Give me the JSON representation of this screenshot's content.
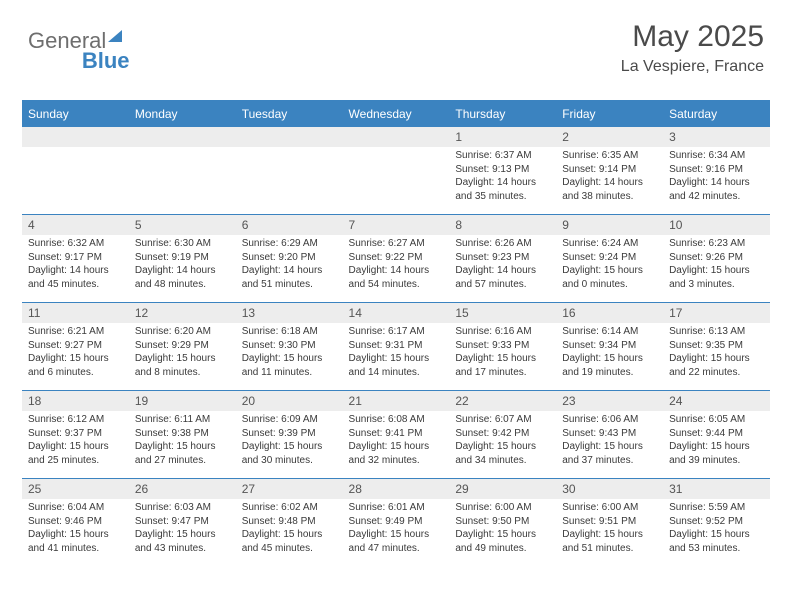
{
  "logo": {
    "part1": "General",
    "part2": "Blue"
  },
  "title": {
    "month": "May 2025",
    "location": "La Vespiere, France"
  },
  "colors": {
    "accent": "#3b83c0",
    "header_text": "#ffffff",
    "daynum_bg": "#ededed",
    "body_text": "#3a3a3a",
    "title_text": "#4a4a4a"
  },
  "day_headers": [
    "Sunday",
    "Monday",
    "Tuesday",
    "Wednesday",
    "Thursday",
    "Friday",
    "Saturday"
  ],
  "weeks": [
    [
      {
        "num": "",
        "sunrise": "",
        "sunset": "",
        "daylight": ""
      },
      {
        "num": "",
        "sunrise": "",
        "sunset": "",
        "daylight": ""
      },
      {
        "num": "",
        "sunrise": "",
        "sunset": "",
        "daylight": ""
      },
      {
        "num": "",
        "sunrise": "",
        "sunset": "",
        "daylight": ""
      },
      {
        "num": "1",
        "sunrise": "Sunrise: 6:37 AM",
        "sunset": "Sunset: 9:13 PM",
        "daylight": "Daylight: 14 hours and 35 minutes."
      },
      {
        "num": "2",
        "sunrise": "Sunrise: 6:35 AM",
        "sunset": "Sunset: 9:14 PM",
        "daylight": "Daylight: 14 hours and 38 minutes."
      },
      {
        "num": "3",
        "sunrise": "Sunrise: 6:34 AM",
        "sunset": "Sunset: 9:16 PM",
        "daylight": "Daylight: 14 hours and 42 minutes."
      }
    ],
    [
      {
        "num": "4",
        "sunrise": "Sunrise: 6:32 AM",
        "sunset": "Sunset: 9:17 PM",
        "daylight": "Daylight: 14 hours and 45 minutes."
      },
      {
        "num": "5",
        "sunrise": "Sunrise: 6:30 AM",
        "sunset": "Sunset: 9:19 PM",
        "daylight": "Daylight: 14 hours and 48 minutes."
      },
      {
        "num": "6",
        "sunrise": "Sunrise: 6:29 AM",
        "sunset": "Sunset: 9:20 PM",
        "daylight": "Daylight: 14 hours and 51 minutes."
      },
      {
        "num": "7",
        "sunrise": "Sunrise: 6:27 AM",
        "sunset": "Sunset: 9:22 PM",
        "daylight": "Daylight: 14 hours and 54 minutes."
      },
      {
        "num": "8",
        "sunrise": "Sunrise: 6:26 AM",
        "sunset": "Sunset: 9:23 PM",
        "daylight": "Daylight: 14 hours and 57 minutes."
      },
      {
        "num": "9",
        "sunrise": "Sunrise: 6:24 AM",
        "sunset": "Sunset: 9:24 PM",
        "daylight": "Daylight: 15 hours and 0 minutes."
      },
      {
        "num": "10",
        "sunrise": "Sunrise: 6:23 AM",
        "sunset": "Sunset: 9:26 PM",
        "daylight": "Daylight: 15 hours and 3 minutes."
      }
    ],
    [
      {
        "num": "11",
        "sunrise": "Sunrise: 6:21 AM",
        "sunset": "Sunset: 9:27 PM",
        "daylight": "Daylight: 15 hours and 6 minutes."
      },
      {
        "num": "12",
        "sunrise": "Sunrise: 6:20 AM",
        "sunset": "Sunset: 9:29 PM",
        "daylight": "Daylight: 15 hours and 8 minutes."
      },
      {
        "num": "13",
        "sunrise": "Sunrise: 6:18 AM",
        "sunset": "Sunset: 9:30 PM",
        "daylight": "Daylight: 15 hours and 11 minutes."
      },
      {
        "num": "14",
        "sunrise": "Sunrise: 6:17 AM",
        "sunset": "Sunset: 9:31 PM",
        "daylight": "Daylight: 15 hours and 14 minutes."
      },
      {
        "num": "15",
        "sunrise": "Sunrise: 6:16 AM",
        "sunset": "Sunset: 9:33 PM",
        "daylight": "Daylight: 15 hours and 17 minutes."
      },
      {
        "num": "16",
        "sunrise": "Sunrise: 6:14 AM",
        "sunset": "Sunset: 9:34 PM",
        "daylight": "Daylight: 15 hours and 19 minutes."
      },
      {
        "num": "17",
        "sunrise": "Sunrise: 6:13 AM",
        "sunset": "Sunset: 9:35 PM",
        "daylight": "Daylight: 15 hours and 22 minutes."
      }
    ],
    [
      {
        "num": "18",
        "sunrise": "Sunrise: 6:12 AM",
        "sunset": "Sunset: 9:37 PM",
        "daylight": "Daylight: 15 hours and 25 minutes."
      },
      {
        "num": "19",
        "sunrise": "Sunrise: 6:11 AM",
        "sunset": "Sunset: 9:38 PM",
        "daylight": "Daylight: 15 hours and 27 minutes."
      },
      {
        "num": "20",
        "sunrise": "Sunrise: 6:09 AM",
        "sunset": "Sunset: 9:39 PM",
        "daylight": "Daylight: 15 hours and 30 minutes."
      },
      {
        "num": "21",
        "sunrise": "Sunrise: 6:08 AM",
        "sunset": "Sunset: 9:41 PM",
        "daylight": "Daylight: 15 hours and 32 minutes."
      },
      {
        "num": "22",
        "sunrise": "Sunrise: 6:07 AM",
        "sunset": "Sunset: 9:42 PM",
        "daylight": "Daylight: 15 hours and 34 minutes."
      },
      {
        "num": "23",
        "sunrise": "Sunrise: 6:06 AM",
        "sunset": "Sunset: 9:43 PM",
        "daylight": "Daylight: 15 hours and 37 minutes."
      },
      {
        "num": "24",
        "sunrise": "Sunrise: 6:05 AM",
        "sunset": "Sunset: 9:44 PM",
        "daylight": "Daylight: 15 hours and 39 minutes."
      }
    ],
    [
      {
        "num": "25",
        "sunrise": "Sunrise: 6:04 AM",
        "sunset": "Sunset: 9:46 PM",
        "daylight": "Daylight: 15 hours and 41 minutes."
      },
      {
        "num": "26",
        "sunrise": "Sunrise: 6:03 AM",
        "sunset": "Sunset: 9:47 PM",
        "daylight": "Daylight: 15 hours and 43 minutes."
      },
      {
        "num": "27",
        "sunrise": "Sunrise: 6:02 AM",
        "sunset": "Sunset: 9:48 PM",
        "daylight": "Daylight: 15 hours and 45 minutes."
      },
      {
        "num": "28",
        "sunrise": "Sunrise: 6:01 AM",
        "sunset": "Sunset: 9:49 PM",
        "daylight": "Daylight: 15 hours and 47 minutes."
      },
      {
        "num": "29",
        "sunrise": "Sunrise: 6:00 AM",
        "sunset": "Sunset: 9:50 PM",
        "daylight": "Daylight: 15 hours and 49 minutes."
      },
      {
        "num": "30",
        "sunrise": "Sunrise: 6:00 AM",
        "sunset": "Sunset: 9:51 PM",
        "daylight": "Daylight: 15 hours and 51 minutes."
      },
      {
        "num": "31",
        "sunrise": "Sunrise: 5:59 AM",
        "sunset": "Sunset: 9:52 PM",
        "daylight": "Daylight: 15 hours and 53 minutes."
      }
    ]
  ]
}
